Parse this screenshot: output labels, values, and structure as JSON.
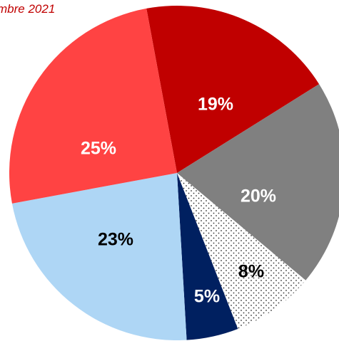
{
  "chart_data": {
    "type": "pie",
    "title": "mbre 2021",
    "values": [
      19,
      20,
      8,
      5,
      23,
      25
    ],
    "value_labels": [
      "19%",
      "20%",
      "8%",
      "5%",
      "23%",
      "25%"
    ],
    "colors": [
      "#c00000",
      "#808080",
      "#ffffff",
      "#002060",
      "#aed6f5",
      "#ff4343"
    ],
    "dotted": [
      false,
      false,
      true,
      false,
      false,
      false
    ],
    "label_colors": [
      "#ffffff",
      "#ffffff",
      "#000000",
      "#ffffff",
      "#000000",
      "#ffffff"
    ]
  }
}
